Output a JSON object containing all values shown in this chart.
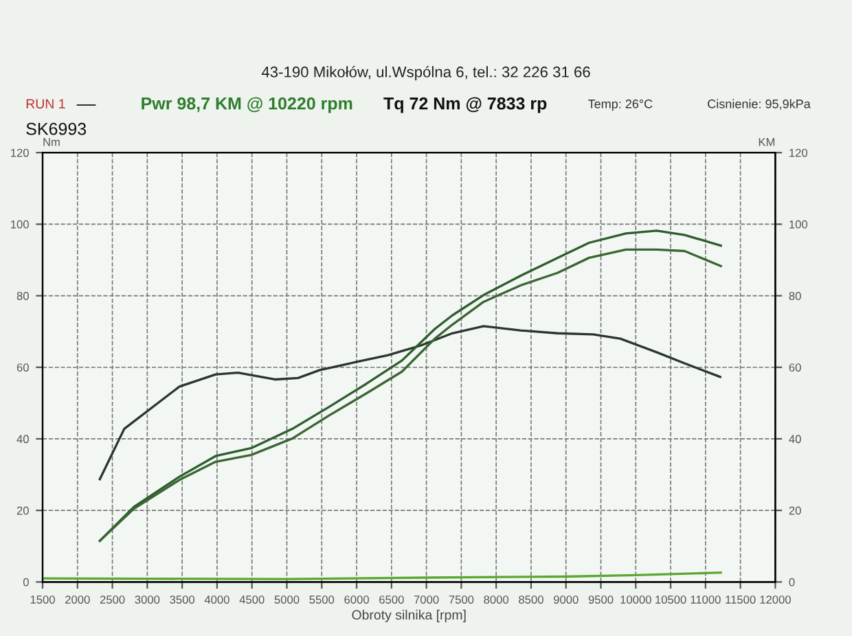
{
  "chart_data": {
    "type": "line",
    "annotations": [
      "43-190 Mikołów, ul.Wspólna 6, tel.: 32 226 31 66",
      "RUN 1",
      "—",
      "Pwr 98,7 KM @ 10220 rpm",
      "Tq 72 Nm @ 7833 rp",
      "Temp: 26°C",
      "Cisnienie: 95,9kPa",
      "SK6993"
    ],
    "xlabel": "Obroty silnika [rpm]",
    "ylabel": "Nm",
    "y2label": "KM",
    "xlim": [
      1500,
      12000
    ],
    "xticks": [
      1500,
      2000,
      2500,
      3000,
      3500,
      4000,
      4500,
      5000,
      5500,
      6000,
      6500,
      7000,
      7500,
      8000,
      8500,
      9000,
      9500,
      10000,
      10500,
      11000,
      11500,
      12000
    ],
    "ylim": [
      0,
      120
    ],
    "yticks": [
      0,
      20,
      40,
      60,
      80,
      100,
      120
    ],
    "y2lim": [
      0,
      120
    ],
    "y2ticks": [
      0,
      20,
      40,
      60,
      80,
      100,
      120
    ],
    "grid": true,
    "line_style": "solid",
    "marker": "none",
    "series": [
      {
        "color": "#2a372c",
        "x": [
          2320,
          2670,
          3460,
          3980,
          4300,
          4830,
          5160,
          5470,
          6000,
          6450,
          6920,
          7370,
          7820,
          8350,
          8880,
          9390,
          9780,
          10300,
          10700,
          11210
        ],
        "values": [
          28.7,
          42.8,
          54.6,
          58,
          58.5,
          56.6,
          57,
          59.2,
          61.5,
          63.4,
          66.1,
          69.5,
          71.5,
          70.3,
          69.5,
          69.2,
          68,
          64.2,
          61.1,
          57.3
        ]
      },
      {
        "color": "#2e5e2e",
        "axis": "y2",
        "x": [
          2320,
          2810,
          3460,
          3980,
          4490,
          5080,
          5610,
          6140,
          6650,
          7120,
          7370,
          7820,
          8350,
          8880,
          9330,
          9860,
          10300,
          10700,
          11220
        ],
        "values": [
          11.5,
          21,
          29.4,
          35.2,
          37.4,
          42.8,
          49,
          55.4,
          61.9,
          70.7,
          74.5,
          80.2,
          85.6,
          90.6,
          94.8,
          97.4,
          98.2,
          97,
          94
        ]
      },
      {
        "color": "#3a6634",
        "axis": "y2",
        "x": [
          2320,
          2810,
          3460,
          3980,
          4490,
          5080,
          5610,
          6140,
          6650,
          7120,
          7370,
          7820,
          8350,
          8880,
          9330,
          9860,
          10300,
          10700,
          11220
        ],
        "values": [
          11.5,
          20.5,
          28.5,
          33.6,
          35.5,
          40.1,
          46.6,
          52.7,
          58.8,
          68,
          71.9,
          78.3,
          82.9,
          86.4,
          90.6,
          92.9,
          92.9,
          92.5,
          88.3
        ]
      },
      {
        "color": "#5aa832",
        "axis": "y2",
        "x": [
          1500,
          3000,
          5000,
          7000,
          9000,
          10000,
          11220
        ],
        "values": [
          1,
          0.9,
          0.8,
          1.2,
          1.5,
          1.9,
          2.6
        ]
      }
    ]
  }
}
